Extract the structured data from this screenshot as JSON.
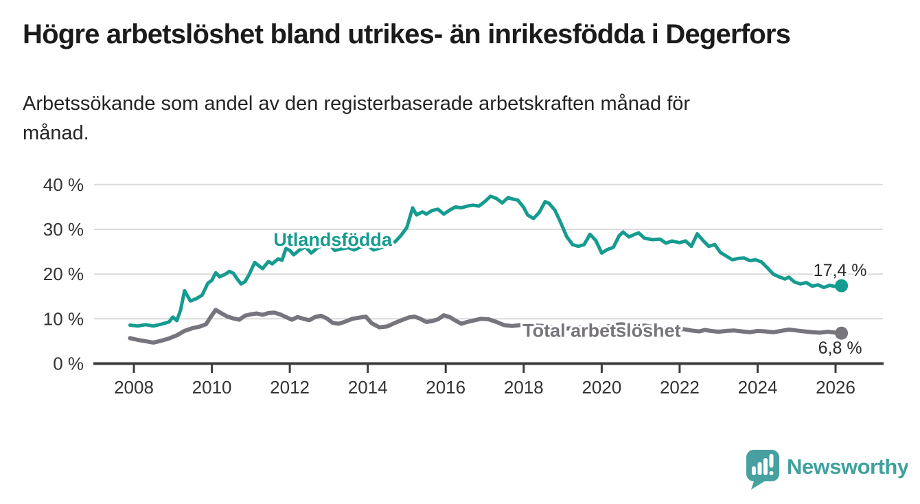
{
  "chart_data": {
    "type": "line",
    "title": "Högre arbetslöshet bland utrikes- än inrikesfödda i Degerfors",
    "subtitle_lines": [
      "Arbetssökande som andel av den registerbaserade arbetskraften månad för",
      "månad."
    ],
    "xlabel": "",
    "ylabel": "",
    "xlim": [
      2007.0,
      2027.2
    ],
    "ylim": [
      0,
      40
    ],
    "grid": true,
    "legend_position": "inline-labels",
    "x_ticks": [
      2008,
      2010,
      2012,
      2014,
      2016,
      2018,
      2020,
      2022,
      2024,
      2026
    ],
    "y_ticks": [
      {
        "value": 0,
        "label": "0 %"
      },
      {
        "value": 10,
        "label": "10 %"
      },
      {
        "value": 20,
        "label": "20 %"
      },
      {
        "value": 30,
        "label": "30 %"
      },
      {
        "value": 40,
        "label": "40 %"
      }
    ],
    "style": {
      "grid_color": "#DBDBDB",
      "axis_color": "#3C3C3C",
      "tick_label_color": "#333333",
      "value_label_color": "#2B2B2B",
      "background": "#FFFFFF"
    },
    "series": [
      {
        "id": "total",
        "name": "Total arbetslöshet",
        "color": "#77747E",
        "line_width": 6,
        "end_label": "6,8 %",
        "end_value": 6.8,
        "end_label_position": "below",
        "label_pos": {
          "x": 2020.0,
          "y": 7.4
        },
        "points": [
          [
            2007.9,
            5.7
          ],
          [
            2008.1,
            5.3
          ],
          [
            2008.3,
            5.0
          ],
          [
            2008.5,
            4.7
          ],
          [
            2008.7,
            5.1
          ],
          [
            2008.9,
            5.6
          ],
          [
            2009.1,
            6.3
          ],
          [
            2009.3,
            7.3
          ],
          [
            2009.5,
            7.9
          ],
          [
            2009.7,
            8.3
          ],
          [
            2009.85,
            8.8
          ],
          [
            2010.0,
            10.8
          ],
          [
            2010.1,
            12.0
          ],
          [
            2010.25,
            11.2
          ],
          [
            2010.4,
            10.5
          ],
          [
            2010.55,
            10.1
          ],
          [
            2010.7,
            9.8
          ],
          [
            2010.85,
            10.7
          ],
          [
            2011.0,
            11.0
          ],
          [
            2011.15,
            11.2
          ],
          [
            2011.3,
            10.9
          ],
          [
            2011.45,
            11.3
          ],
          [
            2011.6,
            11.4
          ],
          [
            2011.75,
            11.0
          ],
          [
            2011.9,
            10.4
          ],
          [
            2012.05,
            9.8
          ],
          [
            2012.2,
            10.4
          ],
          [
            2012.35,
            10.0
          ],
          [
            2012.5,
            9.7
          ],
          [
            2012.65,
            10.4
          ],
          [
            2012.8,
            10.7
          ],
          [
            2012.95,
            10.1
          ],
          [
            2013.1,
            9.1
          ],
          [
            2013.25,
            8.9
          ],
          [
            2013.4,
            9.3
          ],
          [
            2013.6,
            10.0
          ],
          [
            2013.8,
            10.3
          ],
          [
            2013.95,
            10.5
          ],
          [
            2014.1,
            9.0
          ],
          [
            2014.3,
            8.1
          ],
          [
            2014.5,
            8.3
          ],
          [
            2014.7,
            9.1
          ],
          [
            2014.9,
            9.8
          ],
          [
            2015.05,
            10.3
          ],
          [
            2015.2,
            10.5
          ],
          [
            2015.35,
            10.0
          ],
          [
            2015.5,
            9.3
          ],
          [
            2015.65,
            9.5
          ],
          [
            2015.8,
            9.9
          ],
          [
            2015.95,
            10.8
          ],
          [
            2016.1,
            10.4
          ],
          [
            2016.25,
            9.6
          ],
          [
            2016.4,
            8.9
          ],
          [
            2016.55,
            9.3
          ],
          [
            2016.7,
            9.6
          ],
          [
            2016.9,
            10.0
          ],
          [
            2017.1,
            9.9
          ],
          [
            2017.3,
            9.3
          ],
          [
            2017.5,
            8.6
          ],
          [
            2017.7,
            8.4
          ],
          [
            2017.9,
            8.6
          ],
          [
            2018.1,
            8.3
          ],
          [
            2018.3,
            8.5
          ],
          [
            2018.5,
            8.4
          ],
          [
            2018.7,
            8.2
          ],
          [
            2018.9,
            8.0
          ],
          [
            2019.1,
            7.8
          ],
          [
            2019.3,
            8.0
          ],
          [
            2019.5,
            8.2
          ],
          [
            2019.7,
            8.0
          ],
          [
            2019.9,
            7.8
          ],
          [
            2020.1,
            8.2
          ],
          [
            2020.3,
            8.6
          ],
          [
            2020.5,
            8.8
          ],
          [
            2020.7,
            8.6
          ],
          [
            2020.9,
            8.4
          ],
          [
            2021.1,
            8.5
          ],
          [
            2021.3,
            8.2
          ],
          [
            2021.5,
            8.0
          ],
          [
            2021.7,
            7.8
          ],
          [
            2021.9,
            7.5
          ],
          [
            2022.1,
            7.7
          ],
          [
            2022.3,
            7.4
          ],
          [
            2022.5,
            7.2
          ],
          [
            2022.65,
            7.5
          ],
          [
            2022.8,
            7.3
          ],
          [
            2023.0,
            7.1
          ],
          [
            2023.2,
            7.3
          ],
          [
            2023.4,
            7.4
          ],
          [
            2023.6,
            7.2
          ],
          [
            2023.8,
            7.0
          ],
          [
            2024.0,
            7.3
          ],
          [
            2024.2,
            7.2
          ],
          [
            2024.4,
            7.0
          ],
          [
            2024.6,
            7.3
          ],
          [
            2024.8,
            7.6
          ],
          [
            2025.0,
            7.4
          ],
          [
            2025.2,
            7.2
          ],
          [
            2025.4,
            7.0
          ],
          [
            2025.6,
            6.9
          ],
          [
            2025.8,
            7.1
          ],
          [
            2026.0,
            6.9
          ],
          [
            2026.15,
            6.8
          ]
        ]
      },
      {
        "id": "utlandsfodda",
        "name": "Utlandsfödda",
        "color": "#169B90",
        "line_width": 5,
        "end_label": "17,4 %",
        "end_value": 17.4,
        "end_label_position": "above",
        "label_pos": {
          "x": 2013.1,
          "y": 27.7
        },
        "points": [
          [
            2007.9,
            8.6
          ],
          [
            2008.1,
            8.4
          ],
          [
            2008.3,
            8.7
          ],
          [
            2008.5,
            8.4
          ],
          [
            2008.7,
            8.8
          ],
          [
            2008.9,
            9.3
          ],
          [
            2009.0,
            10.4
          ],
          [
            2009.1,
            9.6
          ],
          [
            2009.2,
            12.0
          ],
          [
            2009.3,
            16.3
          ],
          [
            2009.45,
            14.0
          ],
          [
            2009.6,
            14.5
          ],
          [
            2009.75,
            15.3
          ],
          [
            2009.9,
            18.0
          ],
          [
            2010.0,
            18.6
          ],
          [
            2010.1,
            20.3
          ],
          [
            2010.2,
            19.4
          ],
          [
            2010.35,
            20.0
          ],
          [
            2010.45,
            20.6
          ],
          [
            2010.55,
            20.2
          ],
          [
            2010.65,
            18.9
          ],
          [
            2010.75,
            17.8
          ],
          [
            2010.85,
            18.3
          ],
          [
            2010.95,
            19.8
          ],
          [
            2011.1,
            22.6
          ],
          [
            2011.2,
            21.9
          ],
          [
            2011.3,
            21.2
          ],
          [
            2011.45,
            22.8
          ],
          [
            2011.55,
            22.3
          ],
          [
            2011.7,
            23.4
          ],
          [
            2011.8,
            23.1
          ],
          [
            2011.9,
            25.7
          ],
          [
            2012.0,
            25.3
          ],
          [
            2012.1,
            24.3
          ],
          [
            2012.25,
            25.4
          ],
          [
            2012.4,
            26.1
          ],
          [
            2012.55,
            24.7
          ],
          [
            2012.7,
            25.8
          ],
          [
            2012.85,
            26.5
          ],
          [
            2013.0,
            26.8
          ],
          [
            2013.15,
            25.3
          ],
          [
            2013.3,
            25.6
          ],
          [
            2013.5,
            25.9
          ],
          [
            2013.65,
            25.4
          ],
          [
            2013.8,
            26.0
          ],
          [
            2014.0,
            26.3
          ],
          [
            2014.15,
            25.4
          ],
          [
            2014.3,
            25.8
          ],
          [
            2014.5,
            26.4
          ],
          [
            2014.7,
            27.2
          ],
          [
            2014.85,
            28.6
          ],
          [
            2015.0,
            30.4
          ],
          [
            2015.15,
            34.8
          ],
          [
            2015.25,
            33.2
          ],
          [
            2015.4,
            33.9
          ],
          [
            2015.5,
            33.4
          ],
          [
            2015.65,
            34.2
          ],
          [
            2015.8,
            34.5
          ],
          [
            2015.95,
            33.4
          ],
          [
            2016.1,
            34.3
          ],
          [
            2016.25,
            35.0
          ],
          [
            2016.4,
            34.8
          ],
          [
            2016.55,
            35.2
          ],
          [
            2016.7,
            35.4
          ],
          [
            2016.85,
            35.2
          ],
          [
            2017.0,
            36.2
          ],
          [
            2017.15,
            37.4
          ],
          [
            2017.3,
            36.9
          ],
          [
            2017.45,
            35.9
          ],
          [
            2017.6,
            37.1
          ],
          [
            2017.7,
            36.8
          ],
          [
            2017.85,
            36.5
          ],
          [
            2018.0,
            34.9
          ],
          [
            2018.1,
            33.2
          ],
          [
            2018.25,
            32.4
          ],
          [
            2018.4,
            33.8
          ],
          [
            2018.55,
            36.2
          ],
          [
            2018.65,
            35.8
          ],
          [
            2018.8,
            34.3
          ],
          [
            2018.95,
            31.5
          ],
          [
            2019.1,
            28.4
          ],
          [
            2019.25,
            26.6
          ],
          [
            2019.4,
            26.2
          ],
          [
            2019.55,
            26.6
          ],
          [
            2019.7,
            28.9
          ],
          [
            2019.85,
            27.5
          ],
          [
            2020.0,
            24.7
          ],
          [
            2020.15,
            25.5
          ],
          [
            2020.3,
            26.0
          ],
          [
            2020.45,
            28.6
          ],
          [
            2020.55,
            29.4
          ],
          [
            2020.7,
            28.3
          ],
          [
            2020.85,
            28.9
          ],
          [
            2020.95,
            29.2
          ],
          [
            2021.1,
            28.0
          ],
          [
            2021.3,
            27.7
          ],
          [
            2021.5,
            27.8
          ],
          [
            2021.65,
            26.9
          ],
          [
            2021.8,
            27.4
          ],
          [
            2022.0,
            27.0
          ],
          [
            2022.15,
            27.4
          ],
          [
            2022.3,
            26.2
          ],
          [
            2022.45,
            29.0
          ],
          [
            2022.6,
            27.5
          ],
          [
            2022.75,
            26.2
          ],
          [
            2022.9,
            26.6
          ],
          [
            2023.05,
            24.8
          ],
          [
            2023.2,
            24.0
          ],
          [
            2023.35,
            23.2
          ],
          [
            2023.5,
            23.5
          ],
          [
            2023.65,
            23.6
          ],
          [
            2023.8,
            23.0
          ],
          [
            2023.95,
            23.2
          ],
          [
            2024.1,
            22.7
          ],
          [
            2024.25,
            21.4
          ],
          [
            2024.4,
            20.0
          ],
          [
            2024.55,
            19.4
          ],
          [
            2024.7,
            18.9
          ],
          [
            2024.8,
            19.3
          ],
          [
            2024.95,
            18.2
          ],
          [
            2025.1,
            17.8
          ],
          [
            2025.25,
            18.1
          ],
          [
            2025.4,
            17.3
          ],
          [
            2025.55,
            17.6
          ],
          [
            2025.7,
            17.0
          ],
          [
            2025.85,
            17.5
          ],
          [
            2026.0,
            17.2
          ],
          [
            2026.15,
            17.4
          ]
        ]
      }
    ]
  },
  "footer": {
    "logo_text": "Newsworthy",
    "logo_color": "#3FA19C",
    "logo_icon_color": "#47A1A1"
  }
}
